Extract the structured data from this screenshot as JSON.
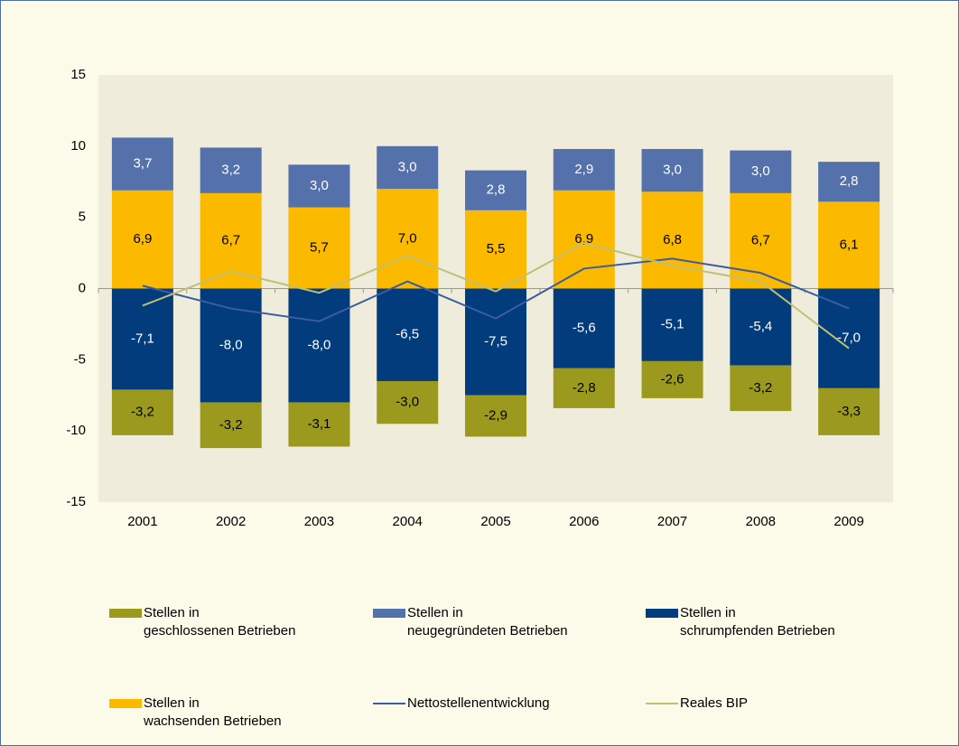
{
  "chart_data": {
    "type": "bar",
    "categories": [
      "2001",
      "2002",
      "2003",
      "2004",
      "2005",
      "2006",
      "2007",
      "2008",
      "2009"
    ],
    "ylim": [
      -15,
      15
    ],
    "yticks": [
      -15,
      -10,
      -5,
      0,
      5,
      10,
      15
    ],
    "series": [
      {
        "name": "Stellen in\ngeschlossenen Betrieben",
        "type": "bar",
        "color": "#9b9a1f",
        "label_color": "#000000",
        "values": [
          -3.2,
          -3.2,
          -3.1,
          -3.0,
          -2.9,
          -2.8,
          -2.6,
          -3.2,
          -3.3
        ],
        "value_labels": [
          "-3,2",
          "-3,2",
          "-3,1",
          "-3,0",
          "-2,9",
          "-2,8",
          "-2,6",
          "-3,2",
          "-3,3"
        ]
      },
      {
        "name": "Stellen in\nneugegründeten Betrieben",
        "type": "bar",
        "color": "#5471ab",
        "label_color": "#ffffff",
        "values": [
          3.7,
          3.2,
          3.0,
          3.0,
          2.8,
          2.9,
          3.0,
          3.0,
          2.8
        ],
        "value_labels": [
          "3,7",
          "3,2",
          "3,0",
          "3,0",
          "2,8",
          "2,9",
          "3,0",
          "3,0",
          "2,8"
        ]
      },
      {
        "name": "Stellen in\nschrumpfenden Betrieben",
        "type": "bar",
        "color": "#023c7c",
        "label_color": "#ffffff",
        "values": [
          -7.1,
          -8.0,
          -8.0,
          -6.5,
          -7.5,
          -5.6,
          -5.1,
          -5.4,
          -7.0
        ],
        "value_labels": [
          "-7,1",
          "-8,0",
          "-8,0",
          "-6,5",
          "-7,5",
          "-5,6",
          "-5,1",
          "-5,4",
          "-7,0"
        ]
      },
      {
        "name": "Stellen in\nwachsenden Betrieben",
        "type": "bar",
        "color": "#fbb900",
        "label_color": "#000000",
        "values": [
          6.9,
          6.7,
          5.7,
          7.0,
          5.5,
          6.9,
          6.8,
          6.7,
          6.1
        ],
        "value_labels": [
          "6,9",
          "6,7",
          "5,7",
          "7,0",
          "5,5",
          "6,9",
          "6,8",
          "6,7",
          "6,1"
        ]
      },
      {
        "name": "Nettostellenentwicklung",
        "type": "line",
        "color": "#3b5ca3",
        "values": [
          0.2,
          -1.4,
          -2.3,
          0.5,
          -2.1,
          1.4,
          2.1,
          1.1,
          -1.4
        ]
      },
      {
        "name": "Reales BIP",
        "type": "line",
        "color": "#c0bf76",
        "values": [
          -1.2,
          1.2,
          -0.3,
          2.3,
          -0.2,
          3.2,
          1.6,
          0.5,
          -4.2
        ]
      }
    ]
  }
}
